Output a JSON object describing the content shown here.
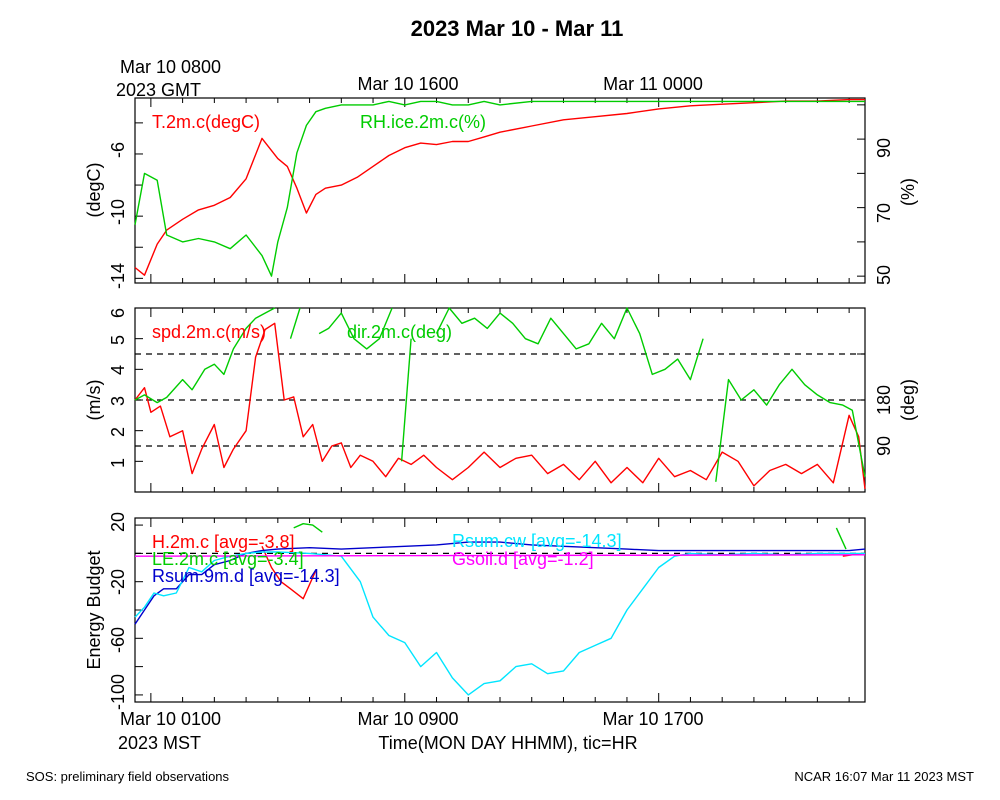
{
  "chart_data": [
    {
      "type": "line",
      "title": "2023 Mar 10 - Mar 11",
      "top_axis": {
        "title_lines": [
          "Mar 10 0800",
          "2023 GMT"
        ],
        "major_labels": [
          "Mar 10 1600",
          "Mar 11 0000"
        ]
      },
      "bottom_axis": {
        "title_lines": [
          "Mar 10 0100",
          "2023 MST"
        ],
        "major_labels": [
          "Mar 10 0900",
          "Mar 10 1700"
        ],
        "xlabel": "Time(MON DAY HHMM), tic=HR"
      },
      "x_range_hours_mst": [
        0.5,
        23.5
      ],
      "panels": [
        {
          "ylabel_left": "(degC)",
          "ylabel_right": "(%)",
          "left_ticks": [
            "-6",
            "-10",
            "-14"
          ],
          "right_ticks": [
            "90",
            "70",
            "50"
          ],
          "ylim_left": [
            -14.3,
            -2.4
          ],
          "ylim_right": [
            48,
            102
          ],
          "series": [
            {
              "name": "T.2m.c(degC)",
              "axis": "left",
              "color": "#ff0000",
              "x": [
                0.5,
                0.8,
                1.2,
                1.5,
                2.0,
                2.5,
                3.0,
                3.5,
                4.0,
                4.5,
                5.0,
                5.3,
                5.6,
                5.9,
                6.2,
                6.5,
                7.0,
                7.5,
                8.0,
                8.5,
                9.0,
                9.5,
                10.0,
                10.5,
                11.0,
                11.5,
                12.0,
                13.0,
                14.0,
                15.0,
                16.0,
                17.0,
                18.0,
                19.0,
                20.0,
                21.0,
                22.0,
                23.0,
                23.5
              ],
              "y": [
                -13.3,
                -13.8,
                -11.8,
                -10.9,
                -10.2,
                -9.6,
                -9.3,
                -8.8,
                -7.6,
                -5.0,
                -6.3,
                -6.8,
                -8.2,
                -9.8,
                -8.6,
                -8.2,
                -8.0,
                -7.5,
                -6.8,
                -6.1,
                -5.6,
                -5.3,
                -5.4,
                -5.2,
                -5.2,
                -4.9,
                -4.6,
                -4.2,
                -3.8,
                -3.6,
                -3.4,
                -3.1,
                -2.9,
                -2.8,
                -2.7,
                -2.6,
                -2.6,
                -2.5,
                -2.5
              ]
            },
            {
              "name": "RH.ice.2m.c(%)",
              "axis": "right",
              "color": "#00cc00",
              "x": [
                0.5,
                0.8,
                1.2,
                1.5,
                2.0,
                2.5,
                3.0,
                3.5,
                4.0,
                4.5,
                4.8,
                5.0,
                5.3,
                5.6,
                5.9,
                6.2,
                6.5,
                7.0,
                7.5,
                8.0,
                8.5,
                9.0,
                9.5,
                10.0,
                10.5,
                11.0,
                11.5,
                12.0,
                13.0,
                14.0,
                15.0,
                16.0,
                17.0,
                18.0,
                19.0,
                20.0,
                21.0,
                22.0,
                23.0,
                23.5
              ],
              "y": [
                65,
                80,
                78,
                62,
                60,
                61,
                60,
                58,
                62,
                56,
                50,
                60,
                70,
                86,
                94,
                98,
                99,
                100,
                100,
                100,
                101,
                100,
                101,
                101,
                100,
                100,
                101,
                100,
                101,
                101,
                101,
                101,
                101,
                101,
                101,
                101,
                101,
                101,
                101,
                101
              ]
            }
          ]
        },
        {
          "ylabel_left": "(m/s)",
          "ylabel_right": "(deg)",
          "left_ticks": [
            "6",
            "5",
            "4",
            "3",
            "2",
            "1"
          ],
          "right_ticks": [
            "180",
            "90"
          ],
          "ylim_left": [
            0.0,
            6.0
          ],
          "ylim_right": [
            0,
            360
          ],
          "reference_lines_deg": [
            90,
            180,
            270
          ],
          "series": [
            {
              "name": "spd.2m.c(m/s)",
              "axis": "left",
              "color": "#ff0000",
              "x": [
                0.5,
                0.8,
                1.0,
                1.3,
                1.6,
                2.0,
                2.3,
                2.6,
                3.0,
                3.3,
                3.6,
                4.0,
                4.3,
                4.6,
                4.9,
                5.2,
                5.5,
                5.8,
                6.1,
                6.4,
                6.7,
                7.0,
                7.3,
                7.6,
                8.0,
                8.4,
                8.8,
                9.2,
                9.6,
                10.0,
                10.5,
                11.0,
                11.5,
                12.0,
                12.5,
                13.0,
                13.5,
                14.0,
                14.5,
                15.0,
                15.5,
                16.0,
                16.5,
                17.0,
                17.5,
                18.0,
                18.5,
                19.0,
                19.5,
                20.0,
                20.5,
                21.0,
                21.5,
                22.0,
                22.5,
                23.0,
                23.3,
                23.5
              ],
              "y": [
                3.0,
                3.4,
                2.6,
                2.8,
                1.8,
                2.0,
                0.6,
                1.4,
                2.2,
                0.8,
                1.4,
                2.0,
                4.4,
                5.3,
                5.5,
                3.0,
                3.1,
                1.8,
                2.2,
                1.0,
                1.5,
                1.6,
                0.8,
                1.2,
                1.0,
                0.5,
                1.1,
                0.9,
                1.2,
                0.8,
                0.4,
                0.8,
                1.3,
                0.8,
                1.1,
                1.2,
                0.6,
                0.9,
                0.4,
                1.0,
                0.3,
                0.8,
                0.3,
                1.1,
                0.5,
                0.7,
                0.4,
                1.3,
                1.0,
                0.2,
                0.7,
                0.9,
                0.6,
                0.9,
                0.3,
                2.5,
                1.8,
                0.1
              ]
            },
            {
              "name": "dir.2m.c(deg)",
              "axis": "right",
              "color": "#00cc00",
              "x": [
                0.5,
                0.8,
                1.2,
                1.5,
                2.0,
                2.3,
                2.7,
                3.0,
                3.3,
                3.6,
                4.0,
                4.3,
                4.6,
                4.9,
                5.1,
                5.4,
                5.7,
                6.0,
                6.3,
                6.6,
                7.0,
                7.4,
                7.8,
                8.2,
                8.6,
                8.9,
                9.2,
                9.6,
                10.0,
                10.4,
                10.8,
                11.2,
                11.6,
                12.0,
                12.4,
                12.8,
                13.2,
                13.6,
                14.0,
                14.4,
                14.8,
                15.2,
                15.6,
                16.0,
                16.4,
                16.8,
                17.2,
                17.6,
                18.0,
                18.4,
                18.8,
                19.2,
                19.6,
                20.0,
                20.4,
                20.8,
                21.2,
                21.6,
                22.0,
                22.4,
                22.8,
                23.1,
                23.5
              ],
              "y": [
                180,
                190,
                175,
                185,
                220,
                200,
                240,
                250,
                230,
                280,
                320,
                340,
                350,
                360,
                0,
                300,
                360,
                5,
                310,
                320,
                350,
                300,
                280,
                300,
                360,
                60,
                300,
                0,
                310,
                360,
                330,
                340,
                320,
                350,
                330,
                300,
                290,
                340,
                310,
                280,
                290,
                330,
                300,
                360,
                310,
                230,
                240,
                260,
                220,
                300,
                20,
                220,
                180,
                200,
                170,
                210,
                240,
                210,
                190,
                175,
                170,
                160,
                30
              ]
            }
          ]
        },
        {
          "ylabel_left": "Energy Budget",
          "left_ticks": [
            "20",
            "-20",
            "-60",
            "-100"
          ],
          "ylim": [
            -105,
            25
          ],
          "zero_line": true,
          "series": [
            {
              "name": "H.2m.c [avg=-3.8]",
              "color": "#ff0000",
              "x": [
                4.5,
                4.8,
                5.1,
                5.4,
                5.8,
                6.2
              ],
              "y": [
                5,
                -10,
                -20,
                -25,
                -32,
                -12
              ],
              "x2": [
                22.8,
                23.1,
                23.4
              ],
              "y2": [
                -2,
                -1,
                0
              ]
            },
            {
              "name": "LE.2m.c [avg=-3.4]",
              "color": "#00cc00",
              "x": [
                5.5,
                5.8,
                6.1,
                6.4
              ],
              "y": [
                18,
                21,
                20,
                15
              ],
              "x2": [
                22.6,
                22.9
              ],
              "y2": [
                18,
                3
              ]
            },
            {
              "name": "Rsum.9m.d [avg=-14.3]",
              "color": "#0000cc",
              "x": [
                0.5,
                0.8,
                1.1,
                1.4,
                1.8,
                2.2,
                2.6,
                3.0,
                3.5,
                4.0,
                4.5,
                5.0,
                6.0,
                7.0,
                8.0,
                9.0,
                10.0,
                11.0,
                12.0,
                13.0,
                14.0,
                15.0,
                16.0,
                17.0,
                18.0,
                19.0,
                20.0,
                21.0,
                22.0,
                23.0,
                23.5
              ],
              "y": [
                -50,
                -40,
                -30,
                -25,
                -25,
                -15,
                -15,
                -8,
                -5,
                0,
                2,
                3,
                4,
                3,
                4,
                5,
                6,
                8,
                8,
                6,
                5,
                4,
                3,
                2,
                2,
                2,
                2,
                2,
                2,
                2,
                3
              ]
            },
            {
              "name": "Rsum.cw [avg=-14.3]",
              "color": "#00e5ff",
              "x": [
                0.5,
                0.8,
                1.1,
                1.4,
                1.8,
                2.2,
                2.6,
                3.0,
                3.5,
                4.0,
                4.5,
                5.0,
                6.0,
                7.0,
                7.6,
                8.0,
                8.5,
                9.0,
                9.5,
                10.0,
                10.5,
                11.0,
                11.5,
                12.0,
                12.5,
                13.0,
                13.5,
                14.0,
                14.5,
                15.0,
                15.5,
                16.0,
                16.5,
                17.0,
                17.5,
                18.0,
                19.0,
                20.0,
                21.0,
                22.0,
                23.0,
                23.5
              ],
              "y": [
                -45,
                -38,
                -28,
                -30,
                -28,
                -10,
                -13,
                -5,
                -2,
                0,
                1,
                1,
                0,
                -2,
                -20,
                -45,
                -58,
                -63,
                -80,
                -70,
                -88,
                -100,
                -92,
                -90,
                -80,
                -78,
                -85,
                -83,
                -70,
                -65,
                -60,
                -40,
                -25,
                -10,
                -2,
                0,
                -1,
                0,
                -1,
                0,
                0,
                0
              ]
            },
            {
              "name": "Gsoil.d [avg=-1.2]",
              "color": "#ff00ff",
              "x": [
                0.5,
                23.5
              ],
              "y": [
                -2,
                -1
              ]
            }
          ]
        }
      ]
    }
  ],
  "footer": {
    "left": "SOS: preliminary field observations",
    "right": "NCAR 16:07 Mar 11 2023 MST"
  }
}
